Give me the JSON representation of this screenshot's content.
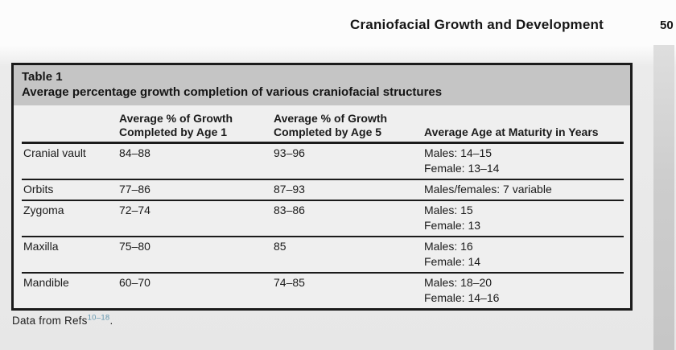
{
  "page": {
    "running_head": "Craniofacial Growth and Development",
    "page_number": "50"
  },
  "colors": {
    "caption_band_bg": "#c5c5c5",
    "table_body_bg": "#efefef",
    "table_border": "#1b1b1b",
    "reference_link_blue": "#6295ad"
  },
  "table": {
    "label": "Table 1",
    "caption": "Average percentage growth completion of various craniofacial structures",
    "columns": {
      "structure": "",
      "age1": {
        "line1": "Average % of Growth",
        "line2": "Completed by Age 1"
      },
      "age5": {
        "line1": "Average % of Growth",
        "line2": "Completed by Age 5"
      },
      "maturity": "Average Age at Maturity in Years"
    },
    "rows": [
      {
        "structure": "Cranial vault",
        "age1": "84–88",
        "age5": "93–96",
        "maturity1": "Males: 14–15",
        "maturity2": "Female: 13–14"
      },
      {
        "structure": "Orbits",
        "age1": "77–86",
        "age5": "87–93",
        "maturity1": "Males/females: 7 variable"
      },
      {
        "structure": "Zygoma",
        "age1": "72–74",
        "age5": "83–86",
        "maturity1": "Males: 15",
        "maturity2": "Female: 13"
      },
      {
        "structure": "Maxilla",
        "age1": "75–80",
        "age5": "85",
        "maturity1": "Males: 16",
        "maturity2": "Female: 14"
      },
      {
        "structure": "Mandible",
        "age1": "60–70",
        "age5": "74–85",
        "maturity1": "Males: 18–20",
        "maturity2": "Female: 14–16"
      }
    ],
    "footnote": {
      "prefix": "Data from Refs",
      "refs": "10–18",
      "suffix": "."
    }
  }
}
